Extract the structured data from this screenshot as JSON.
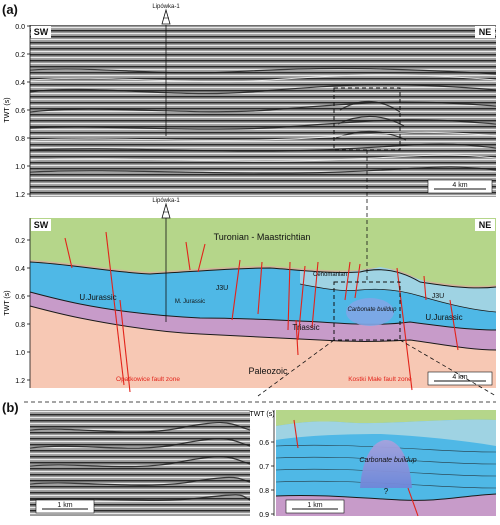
{
  "panel_a": {
    "label": "(a)",
    "seismic": {
      "well_name": "Lipówka-1",
      "dir_left": "SW",
      "dir_right": "NE",
      "yaxis_label": "TWT (s)",
      "yticks": [
        "0.0",
        "0.2",
        "0.4",
        "0.6",
        "0.8",
        "1.0",
        "1.2"
      ],
      "scale_label": "4 km"
    },
    "interpretation": {
      "well_name": "Lipówka-1",
      "dir_left": "SW",
      "dir_right": "NE",
      "yaxis_label": "TWT (s)",
      "yticks": [
        "0.2",
        "0.4",
        "0.6",
        "0.8",
        "1.0",
        "1.2"
      ],
      "scale_label": "4 km",
      "units": {
        "turonian": "Turonian - Maastrichtian",
        "cenomanian": "Cenomanian",
        "j3u_left": "J3U",
        "j3u_right": "J3U",
        "ujurassic_left": "U.Jurassic",
        "ujurassic_right": "U.Jurassic",
        "mjurassic": "M. Jurassic",
        "triassic": "Triassic",
        "paleozoic": "Paleozoic",
        "carbonate": "Carbonate buildup"
      },
      "faults": {
        "opatkowice": "Opatkowice fault zone",
        "kostki": "Kostki Małe fault zone"
      }
    }
  },
  "panel_b": {
    "label": "(b)",
    "yaxis_label": "TWT (s)",
    "yticks": [
      "0.6",
      "0.7",
      "0.8",
      "0.9"
    ],
    "scale_left": "1 km",
    "scale_right": "1 km",
    "carbonate": "Carbonate buildup",
    "question": "?"
  },
  "colors": {
    "turonian": "#b5d68a",
    "cenomanian": "#d7ece6",
    "jurassic": "#4fb8e6",
    "j3u": "#9fd3e3",
    "triassic": "#c79bc9",
    "paleozoic": "#f7c8b4",
    "fault": "#e2231a"
  }
}
